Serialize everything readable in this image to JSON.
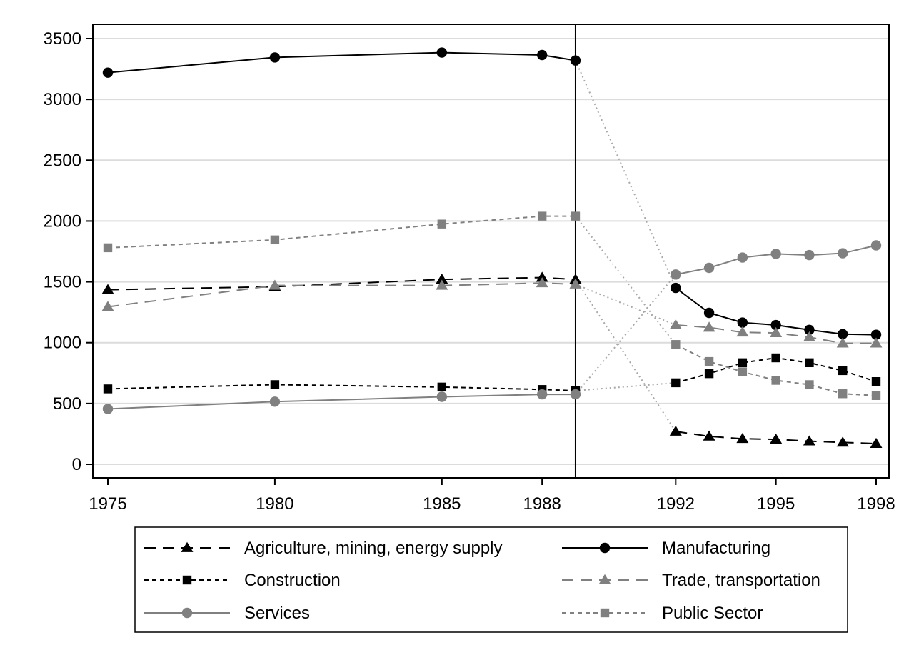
{
  "chart_data": {
    "type": "line",
    "title": "",
    "xlabel": "",
    "ylabel": "",
    "xlim": [
      1975,
      1998
    ],
    "ylim": [
      0,
      3500
    ],
    "x_ticks": [
      1975,
      1980,
      1985,
      1988,
      1992,
      1995,
      1998
    ],
    "x_tick_labels": [
      "1975",
      "1980",
      "1985",
      "1988",
      "1992",
      "1995",
      "1998"
    ],
    "y_ticks": [
      0,
      500,
      1000,
      1500,
      2000,
      2500,
      3000,
      3500
    ],
    "y_tick_labels": [
      "0",
      "500",
      "1000",
      "1500",
      "2000",
      "2500",
      "3000",
      "3500"
    ],
    "grid": true,
    "vertical_line_x": 1989,
    "gap_between": [
      1989,
      1992
    ],
    "legend_position": "bottom",
    "series": [
      {
        "name": "Agriculture, mining, energy supply",
        "color": "#000000",
        "dash": "long-dash",
        "marker": "triangle",
        "x": [
          1975,
          1980,
          1985,
          1988,
          1989,
          1992,
          1993,
          1994,
          1995,
          1996,
          1997,
          1998
        ],
        "values": [
          1435,
          1460,
          1520,
          1535,
          1520,
          270,
          230,
          210,
          205,
          190,
          180,
          170
        ]
      },
      {
        "name": "Manufacturing",
        "color": "#000000",
        "dash": "solid",
        "marker": "circle",
        "x": [
          1975,
          1980,
          1985,
          1988,
          1989,
          1992,
          1993,
          1994,
          1995,
          1996,
          1997,
          1998
        ],
        "values": [
          3220,
          3345,
          3385,
          3365,
          3320,
          1450,
          1245,
          1165,
          1145,
          1105,
          1070,
          1065
        ]
      },
      {
        "name": "Construction",
        "color": "#000000",
        "dash": "short-dash",
        "marker": "square",
        "x": [
          1975,
          1980,
          1985,
          1988,
          1989,
          1992,
          1993,
          1994,
          1995,
          1996,
          1997,
          1998
        ],
        "values": [
          620,
          655,
          635,
          615,
          605,
          670,
          745,
          835,
          875,
          835,
          770,
          680
        ]
      },
      {
        "name": "Trade, transportation",
        "color": "#808080",
        "dash": "long-dash",
        "marker": "triangle",
        "x": [
          1975,
          1980,
          1985,
          1988,
          1989,
          1992,
          1993,
          1994,
          1995,
          1996,
          1997,
          1998
        ],
        "values": [
          1295,
          1470,
          1470,
          1490,
          1480,
          1145,
          1125,
          1085,
          1080,
          1045,
          995,
          995
        ]
      },
      {
        "name": "Services",
        "color": "#808080",
        "dash": "solid",
        "marker": "circle",
        "x": [
          1975,
          1980,
          1985,
          1988,
          1989,
          1992,
          1993,
          1994,
          1995,
          1996,
          1997,
          1998
        ],
        "values": [
          455,
          515,
          555,
          575,
          575,
          1560,
          1615,
          1700,
          1730,
          1720,
          1735,
          1800
        ]
      },
      {
        "name": "Public Sector",
        "color": "#808080",
        "dash": "short-dash",
        "marker": "square",
        "x": [
          1975,
          1980,
          1985,
          1988,
          1989,
          1992,
          1993,
          1994,
          1995,
          1996,
          1997,
          1998
        ],
        "values": [
          1780,
          1845,
          1975,
          2040,
          2040,
          985,
          845,
          760,
          690,
          655,
          580,
          565
        ]
      }
    ]
  }
}
